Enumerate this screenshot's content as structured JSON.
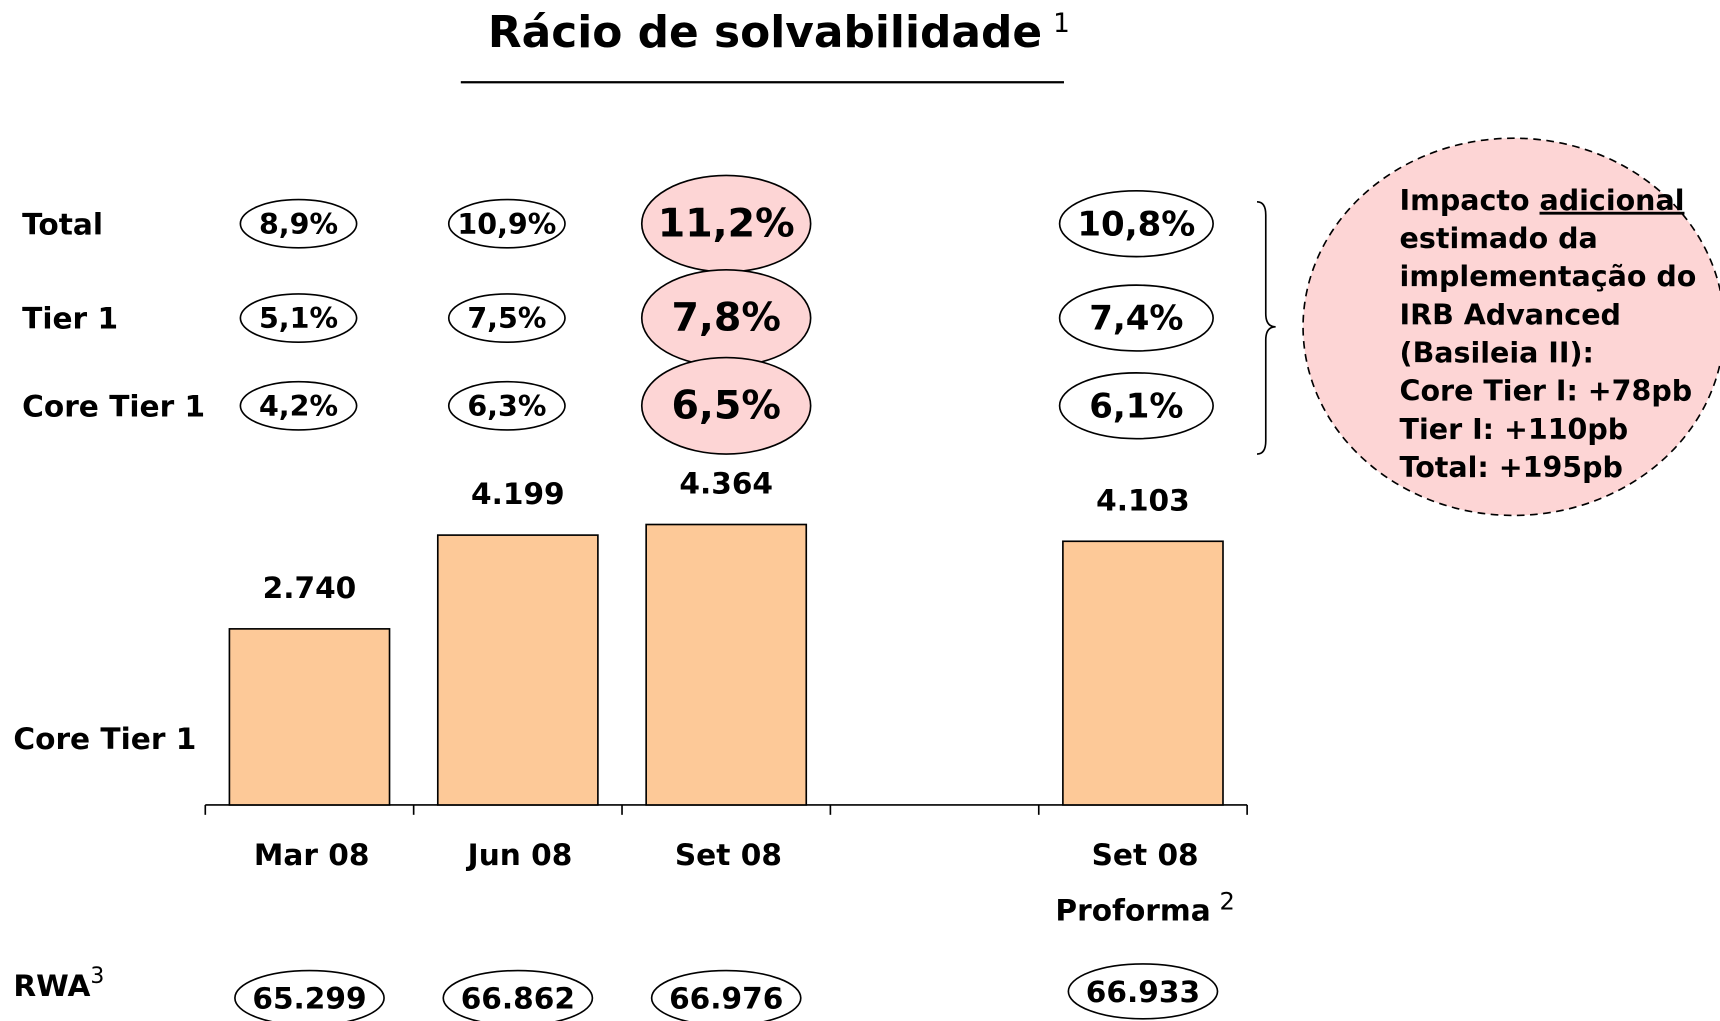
{
  "chart_data": {
    "type": "bar",
    "title": "Rácio de solvabilidade",
    "title_note": "1",
    "categories": [
      "Mar 08",
      "Jun 08",
      "Set 08",
      null,
      "Set 08"
    ],
    "proforma_label": "Proforma",
    "proforma_note": "2",
    "y_label": "Core Tier 1",
    "values": [
      2740,
      4199,
      4364,
      null,
      4103
    ],
    "value_labels": [
      "2.740",
      "4.199",
      "4.364",
      null,
      "4.103"
    ],
    "color": "#fdc998",
    "ylim": [
      0,
      5000
    ],
    "ratios": [
      {
        "name": "Total",
        "values": [
          8.9,
          10.9,
          11.2,
          null,
          10.8
        ],
        "value_labels": [
          "8,9%",
          "10,9%",
          "11,2%",
          null,
          "10,8%"
        ]
      },
      {
        "name": "Tier 1",
        "values": [
          5.1,
          7.5,
          7.8,
          null,
          7.4
        ],
        "value_labels": [
          "5,1%",
          "7,5%",
          "7,8%",
          null,
          "7,4%"
        ]
      },
      {
        "name": "Core Tier 1",
        "values": [
          4.2,
          6.3,
          6.5,
          null,
          6.1
        ],
        "value_labels": [
          "4,2%",
          "6,3%",
          "6,5%",
          null,
          "6,1%"
        ]
      }
    ],
    "rwa": {
      "name": "RWA",
      "note": "3",
      "values": [
        65299,
        66862,
        66976,
        null,
        66933
      ],
      "value_labels": [
        "65.299",
        "66.862",
        "66.976",
        null,
        "66.933"
      ]
    },
    "callout": [
      "Impacto ",
      "adicional",
      "estimado da",
      "implementação do",
      "IRB Advanced",
      "(Basileia II):",
      "Core Tier I: +78pb",
      "Tier I: +110pb",
      "Total: +195pb"
    ]
  }
}
